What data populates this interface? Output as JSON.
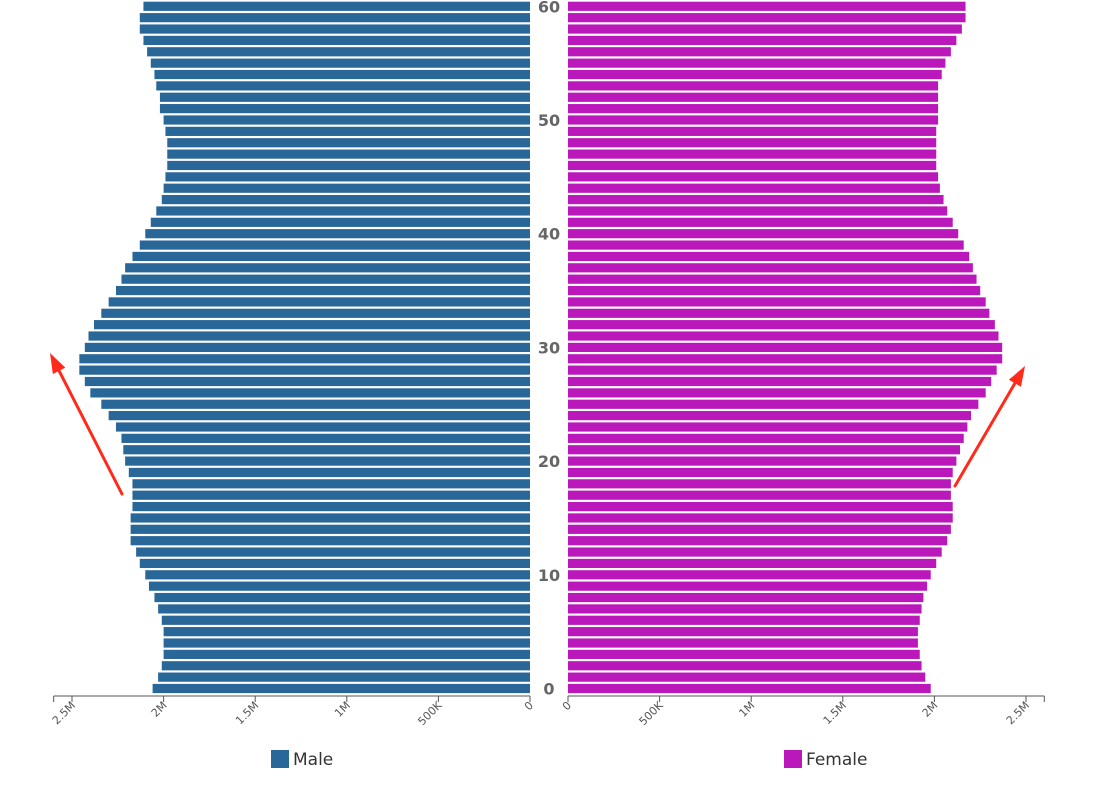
{
  "chart_data": {
    "type": "bar",
    "orientation": "horizontal",
    "layout": "population-pyramid",
    "ages": [
      0,
      1,
      2,
      3,
      4,
      5,
      6,
      7,
      8,
      9,
      10,
      11,
      12,
      13,
      14,
      15,
      16,
      17,
      18,
      19,
      20,
      21,
      22,
      23,
      24,
      25,
      26,
      27,
      28,
      29,
      30,
      31,
      32,
      33,
      34,
      35,
      36,
      37,
      38,
      39,
      40,
      41,
      42,
      43,
      44,
      45,
      46,
      47,
      48,
      49,
      50,
      51,
      52,
      53,
      54,
      55,
      56,
      57,
      58,
      59,
      60
    ],
    "age_labels": [
      "0",
      "10",
      "20",
      "30",
      "40",
      "50",
      "60"
    ],
    "series": [
      {
        "name": "Male",
        "color": "#2a6799",
        "side": "left",
        "values": [
          2.06,
          2.03,
          2.01,
          2.0,
          2.0,
          2.0,
          2.01,
          2.03,
          2.05,
          2.08,
          2.1,
          2.13,
          2.15,
          2.18,
          2.18,
          2.18,
          2.17,
          2.17,
          2.17,
          2.19,
          2.21,
          2.22,
          2.23,
          2.26,
          2.3,
          2.34,
          2.4,
          2.43,
          2.46,
          2.46,
          2.43,
          2.41,
          2.38,
          2.34,
          2.3,
          2.26,
          2.23,
          2.21,
          2.17,
          2.13,
          2.1,
          2.07,
          2.04,
          2.01,
          2.0,
          1.99,
          1.98,
          1.98,
          1.98,
          1.99,
          2.0,
          2.02,
          2.02,
          2.04,
          2.05,
          2.07,
          2.09,
          2.11,
          2.13,
          2.13,
          2.11
        ]
      },
      {
        "name": "Female",
        "color": "#bb18bb",
        "side": "right",
        "values": [
          1.98,
          1.95,
          1.93,
          1.92,
          1.91,
          1.91,
          1.92,
          1.93,
          1.94,
          1.96,
          1.98,
          2.01,
          2.04,
          2.07,
          2.09,
          2.1,
          2.1,
          2.09,
          2.09,
          2.1,
          2.12,
          2.14,
          2.16,
          2.18,
          2.2,
          2.24,
          2.28,
          2.31,
          2.34,
          2.37,
          2.37,
          2.35,
          2.33,
          2.3,
          2.28,
          2.25,
          2.23,
          2.21,
          2.19,
          2.16,
          2.13,
          2.1,
          2.07,
          2.05,
          2.03,
          2.02,
          2.01,
          2.01,
          2.01,
          2.01,
          2.02,
          2.02,
          2.02,
          2.02,
          2.04,
          2.06,
          2.09,
          2.12,
          2.15,
          2.17,
          2.17
        ]
      }
    ],
    "x_axis": {
      "unit": "millions",
      "range": [
        0,
        2.6
      ],
      "ticks": [
        0,
        0.5,
        1.0,
        1.5,
        2.0,
        2.5
      ],
      "left_tick_labels": [
        "2.5M",
        "2M",
        "1.5M",
        "1M",
        "500K",
        "0"
      ],
      "right_tick_labels": [
        "0",
        "500K",
        "1M",
        "1.5M",
        "2M",
        "2.5M"
      ]
    },
    "y_axis": {
      "range": [
        0,
        60
      ]
    },
    "legend": {
      "placement": "bottom",
      "items": [
        {
          "label": "Male",
          "color": "#2a6799"
        },
        {
          "label": "Female",
          "color": "#bb18bb"
        }
      ]
    },
    "annotations": [
      {
        "type": "arrow",
        "color": "#ff2a1a",
        "side": "left",
        "points_to_age": 29
      },
      {
        "type": "arrow",
        "color": "#ff2a1a",
        "side": "right",
        "points_to_age": 28
      }
    ],
    "grid": false
  }
}
